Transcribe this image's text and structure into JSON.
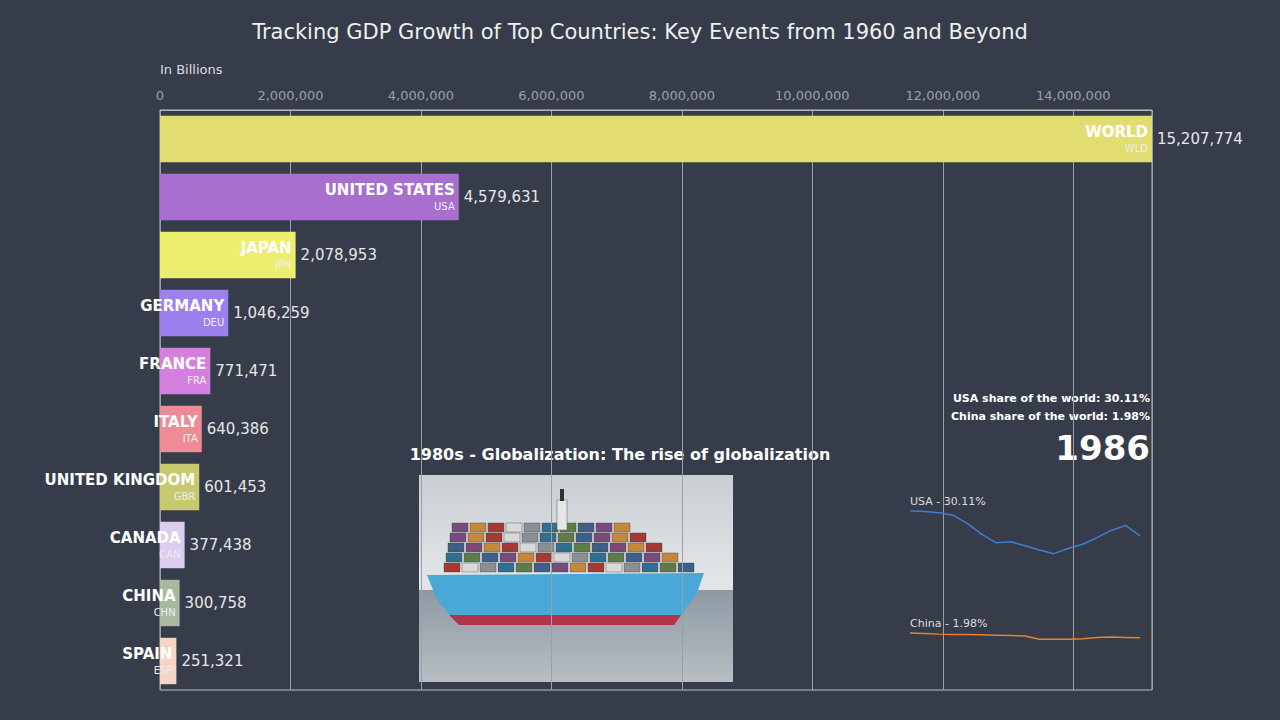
{
  "chart_data": [
    {
      "type": "bar",
      "orientation": "horizontal",
      "title": "Tracking GDP Growth of Top Countries: Key Events from 1960 and Beyond",
      "xlabel": "In Billions",
      "categories": [
        "WORLD",
        "UNITED STATES",
        "JAPAN",
        "GERMANY",
        "FRANCE",
        "ITALY",
        "UNITED KINGDOM",
        "CANADA",
        "CHINA",
        "SPAIN"
      ],
      "codes": [
        "WLD",
        "USA",
        "JPN",
        "DEU",
        "FRA",
        "ITA",
        "GBR",
        "CAN",
        "CHN",
        "ESP"
      ],
      "values": [
        15207774,
        4579631,
        2078953,
        1046259,
        771471,
        640386,
        601453,
        377438,
        300758,
        251321
      ],
      "value_labels": [
        "15,207,774",
        "4,579,631",
        "2,078,953",
        "1,046,259",
        "771,471",
        "640,386",
        "601,453",
        "377,438",
        "300,758",
        "251,321"
      ],
      "colors": [
        "#e2dd70",
        "#a86fd0",
        "#eeee6e",
        "#9b80ee",
        "#d57fdf",
        "#ef8b95",
        "#c8c96e",
        "#dccdf0",
        "#a9b9a1",
        "#f6d4c6"
      ],
      "xlim": [
        0,
        15207774
      ],
      "xticks": [
        0,
        {
          "value": 2000000,
          "label": "2,000,000"
        },
        {
          "value": 4000000,
          "label": "4,000,000"
        },
        {
          "value": 6000000,
          "label": "6,000,000"
        },
        {
          "value": 8000000,
          "label": "8,000,000"
        },
        {
          "value": 10000000,
          "label": "10,000,000"
        },
        {
          "value": 12000000,
          "label": "12,000,000"
        },
        {
          "value": 14000000,
          "label": "14,000,000"
        }
      ],
      "grid": true,
      "data_labels": true,
      "annotations": {
        "event": "1980s - Globalization: The rise of globalization",
        "usa_share": "USA share of the world: 30.11%",
        "china_share": "China share of the world: 1.98%",
        "year": "1986"
      }
    },
    {
      "type": "line",
      "categories": [
        null,
        null,
        null,
        null,
        null,
        null,
        null,
        null,
        null,
        null,
        null,
        null,
        null,
        null,
        null,
        null,
        null
      ],
      "series": [
        {
          "name": "USA - 30.11%",
          "color": "#3d7fd6",
          "values": [
            37.0,
            36.8,
            36.5,
            35.8,
            33.5,
            30.5,
            28.2,
            28.5,
            27.4,
            26.2,
            25.2,
            26.6,
            27.8,
            29.6,
            31.6,
            33.0,
            30.11
          ]
        },
        {
          "name": "China - 1.98%",
          "color": "#e8822f",
          "values": [
            3.3,
            3.2,
            3.0,
            2.9,
            2.9,
            2.8,
            2.7,
            2.6,
            2.5,
            1.6,
            1.6,
            1.6,
            1.7,
            2.1,
            2.2,
            2.1,
            1.98
          ]
        }
      ],
      "ylim": [
        0,
        40
      ],
      "tick_labels": false,
      "grid": false
    }
  ]
}
